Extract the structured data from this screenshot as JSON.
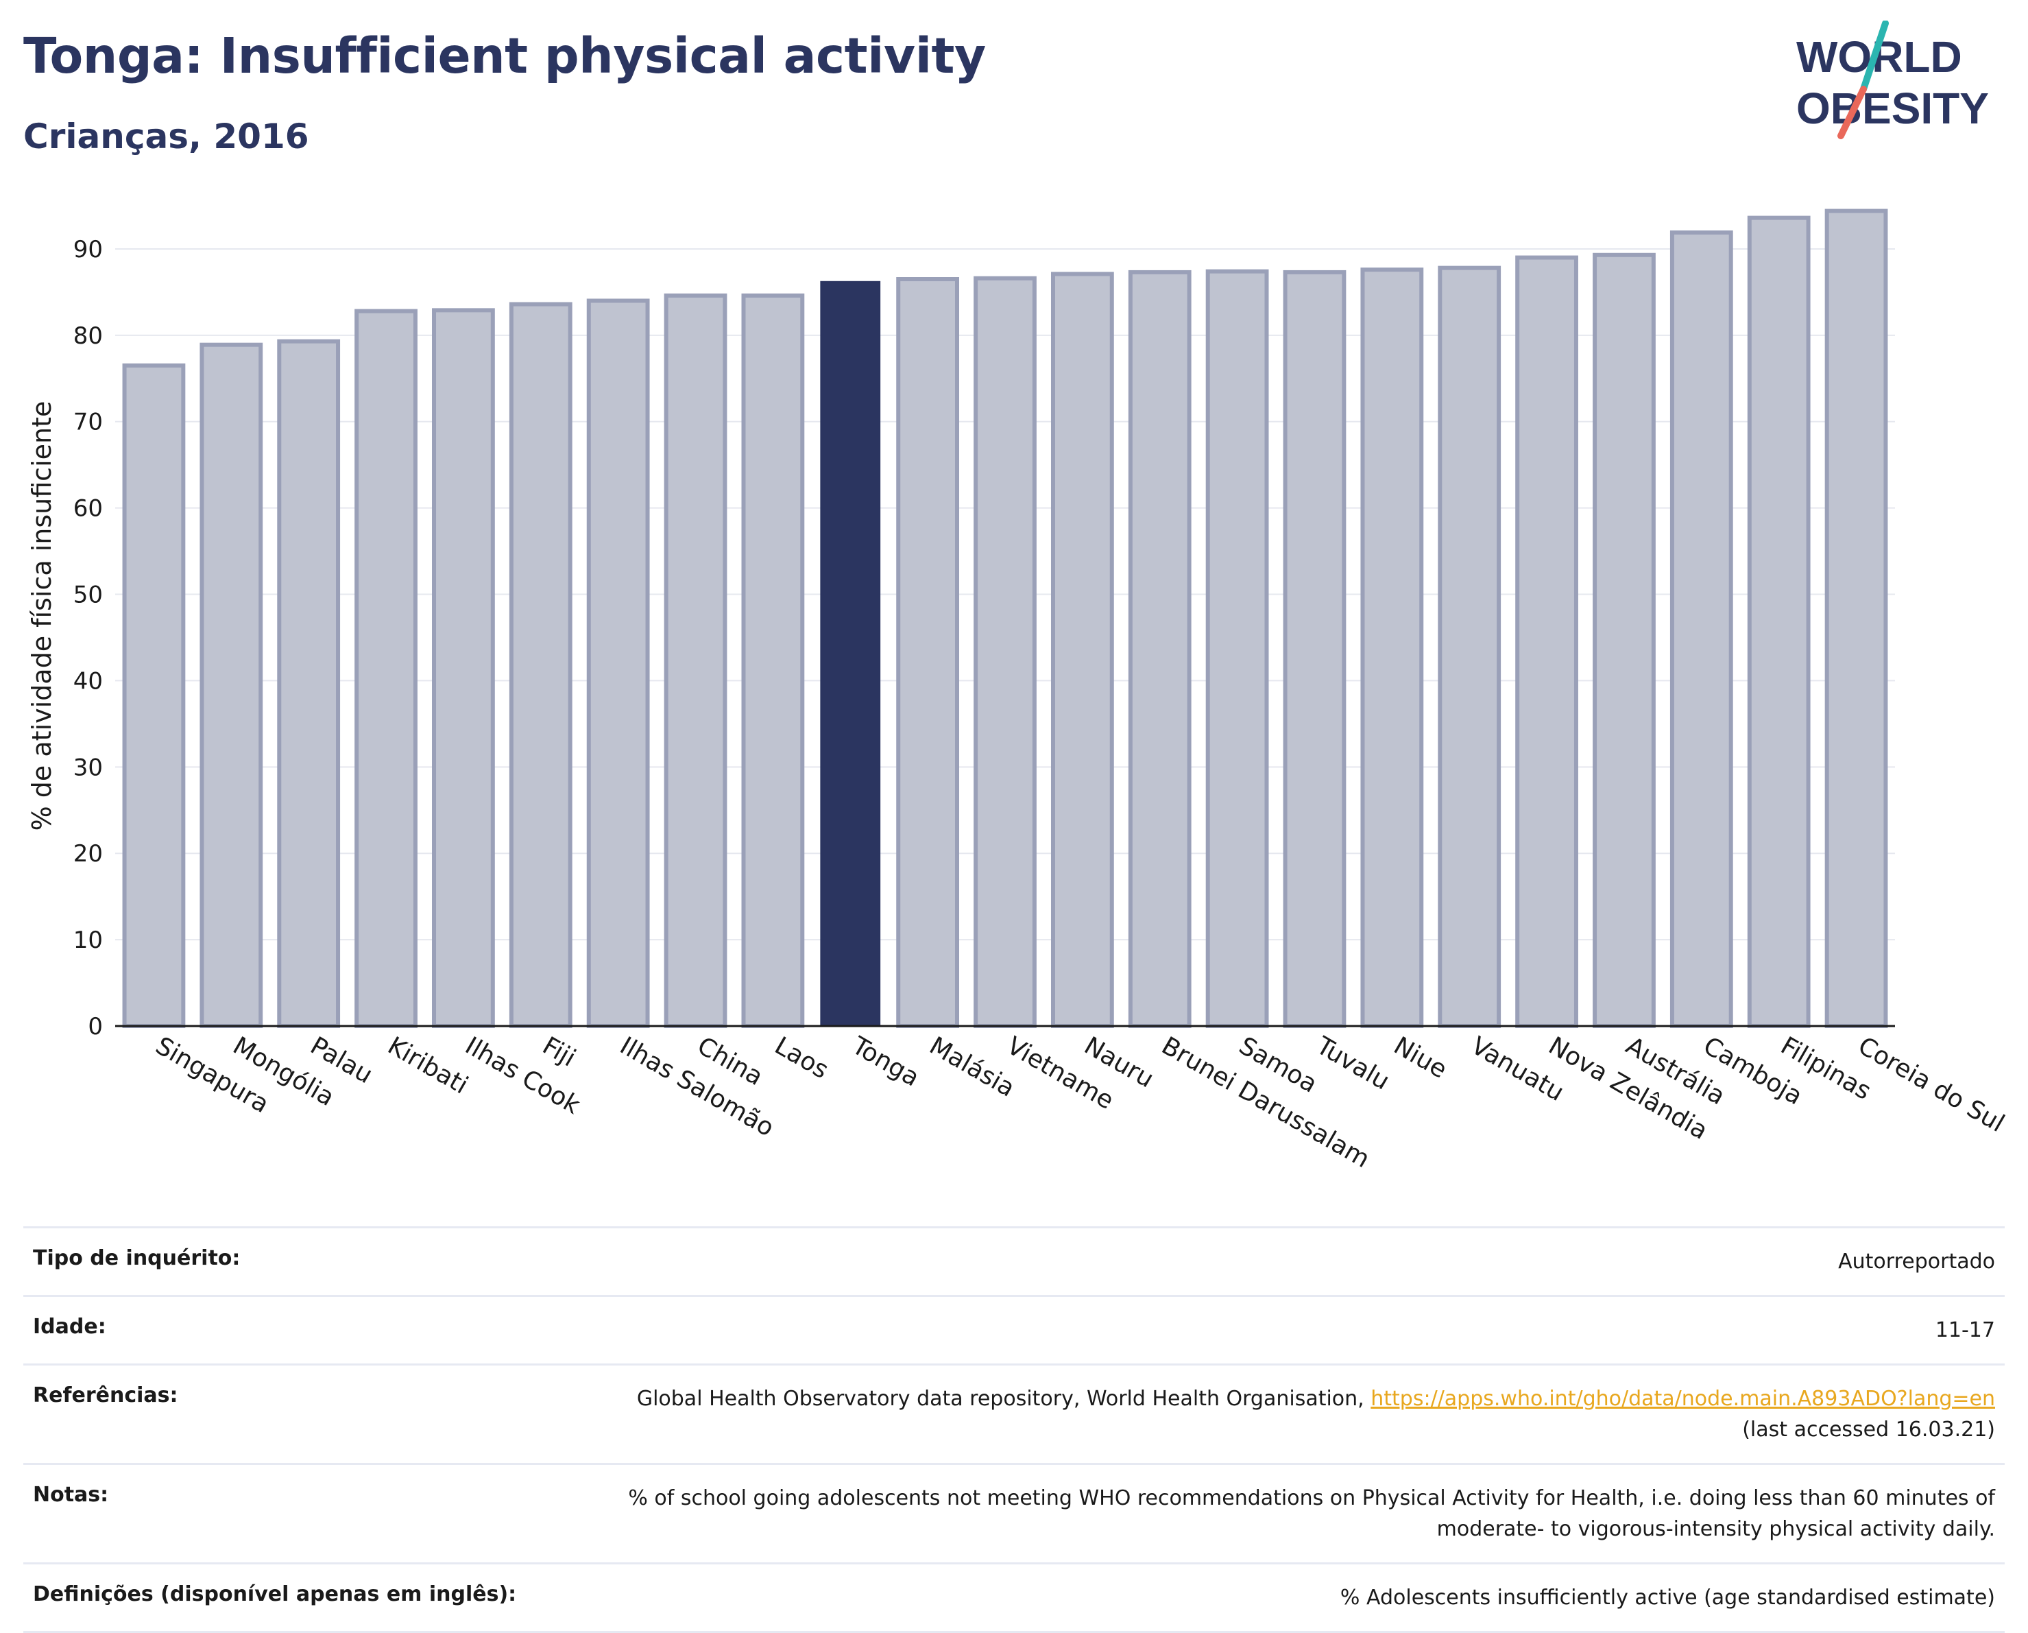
{
  "header": {
    "title": "Tonga: Insufficient physical activity",
    "subtitle": "Crianças, 2016"
  },
  "logo": {
    "line1": "WORLD",
    "line2": "OBESITY",
    "accent_colors": [
      "#2bb5b0",
      "#e9685a"
    ]
  },
  "chart_data": {
    "type": "bar",
    "ylabel": "% de atividade física insuficiente",
    "xlabel": "",
    "ylim": [
      0,
      95
    ],
    "yticks": [
      0,
      10,
      20,
      30,
      40,
      50,
      60,
      70,
      80,
      90
    ],
    "grid": true,
    "highlight_category": "Tonga",
    "colors": {
      "bar": "#bfc3d0",
      "bar_border": "#9aa0b8",
      "highlight": "#2b3560"
    },
    "categories": [
      "Singapura",
      "Mongólia",
      "Palau",
      "Kiribati",
      "Ilhas Cook",
      "Fiji",
      "Ilhas Salomão",
      "China",
      "Laos",
      "Tonga",
      "Malásia",
      "Vietname",
      "Nauru",
      "Brunei Darussalam",
      "Samoa",
      "Tuvalu",
      "Niue",
      "Vanuatu",
      "Nova Zelândia",
      "Austrália",
      "Camboja",
      "Filipinas",
      "Coreia do Sul"
    ],
    "values": [
      76.5,
      78.9,
      79.3,
      82.8,
      82.9,
      83.6,
      84.0,
      84.6,
      84.6,
      86.2,
      86.5,
      86.6,
      87.1,
      87.3,
      87.4,
      87.3,
      87.6,
      87.8,
      89.0,
      89.3,
      91.9,
      93.6,
      94.4
    ]
  },
  "info": {
    "survey_type": {
      "label": "Tipo de inquérito:",
      "value": "Autorreportado"
    },
    "age": {
      "label": "Idade:",
      "value": "11-17"
    },
    "references": {
      "label": "Referências:",
      "text": "Global Health Observatory data repository, World Health Organisation,",
      "link": "https://apps.who.int/gho/data/node.main.A893ADO?lang=en",
      "accessed": "(last accessed 16.03.21)"
    },
    "notes": {
      "label": "Notas:",
      "line1": "% of school going adolescents not meeting WHO recommendations on Physical Activity for Health, i.e. doing less than 60 minutes of",
      "line2": "moderate- to vigorous-intensity physical activity daily."
    },
    "definitions": {
      "label": "Definições (disponível apenas em inglês):",
      "value": "% Adolescents insufficiently active (age standardised estimate)"
    }
  }
}
